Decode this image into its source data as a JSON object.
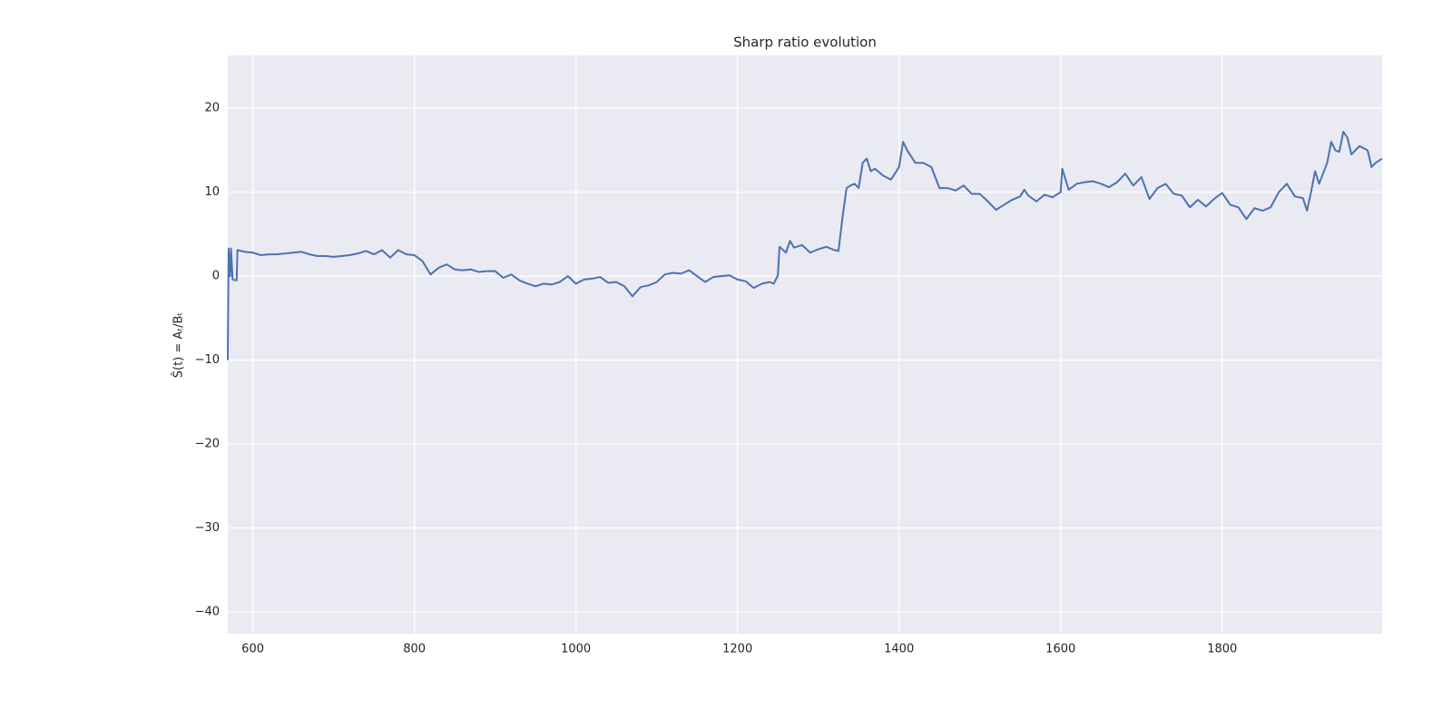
{
  "chart_data": {
    "type": "line",
    "title": "Sharp ratio evolution",
    "y_label": "Ŝ(t) = Aₜ/Bₜ",
    "xlim": [
      569,
      1998
    ],
    "ylim": [
      -42.6,
      26.3
    ],
    "xticks": [
      600,
      800,
      1000,
      1200,
      1400,
      1600,
      1800
    ],
    "yticks": [
      {
        "value": -40,
        "label": "−40"
      },
      {
        "value": -30,
        "label": "−30"
      },
      {
        "value": -20,
        "label": "−20"
      },
      {
        "value": -10,
        "label": "−10"
      },
      0,
      10,
      20
    ],
    "grid": true,
    "background": "#eaeaf2",
    "series": [
      {
        "color": "#4c72b0",
        "x": [
          569,
          570,
          572,
          573,
          575,
          580,
          581,
          590,
          600,
          610,
          620,
          630,
          640,
          650,
          660,
          670,
          680,
          690,
          700,
          710,
          720,
          730,
          740,
          750,
          760,
          770,
          780,
          790,
          800,
          810,
          820,
          830,
          840,
          850,
          860,
          870,
          880,
          890,
          900,
          910,
          920,
          930,
          940,
          950,
          960,
          970,
          980,
          990,
          1000,
          1010,
          1020,
          1030,
          1040,
          1050,
          1060,
          1070,
          1080,
          1090,
          1100,
          1110,
          1120,
          1130,
          1140,
          1150,
          1160,
          1170,
          1180,
          1190,
          1200,
          1210,
          1220,
          1230,
          1240,
          1245,
          1250,
          1252,
          1260,
          1265,
          1270,
          1280,
          1290,
          1300,
          1310,
          1320,
          1325,
          1330,
          1335,
          1340,
          1345,
          1350,
          1355,
          1360,
          1365,
          1370,
          1380,
          1390,
          1400,
          1405,
          1410,
          1420,
          1430,
          1440,
          1450,
          1460,
          1470,
          1480,
          1490,
          1500,
          1510,
          1520,
          1530,
          1540,
          1550,
          1555,
          1560,
          1570,
          1580,
          1590,
          1600,
          1602,
          1610,
          1620,
          1630,
          1640,
          1650,
          1660,
          1670,
          1680,
          1690,
          1700,
          1710,
          1720,
          1730,
          1740,
          1750,
          1760,
          1770,
          1780,
          1790,
          1800,
          1810,
          1820,
          1830,
          1840,
          1850,
          1860,
          1870,
          1880,
          1890,
          1900,
          1905,
          1910,
          1915,
          1920,
          1930,
          1935,
          1940,
          1945,
          1950,
          1955,
          1960,
          1970,
          1980,
          1985,
          1990,
          1998
        ],
        "values": [
          -10,
          3.3,
          0,
          3.3,
          -0.4,
          -0.5,
          3.1,
          2.9,
          2.8,
          2.5,
          2.6,
          2.6,
          2.7,
          2.8,
          2.9,
          2.6,
          2.4,
          2.4,
          2.3,
          2.4,
          2.5,
          2.7,
          3.0,
          2.6,
          3.1,
          2.2,
          3.1,
          2.6,
          2.5,
          1.8,
          0.2,
          1.0,
          1.4,
          0.8,
          0.7,
          0.8,
          0.5,
          0.6,
          0.6,
          -0.2,
          0.2,
          -0.5,
          -0.9,
          -1.2,
          -0.9,
          -1.0,
          -0.7,
          0.0,
          -0.9,
          -0.4,
          -0.3,
          -0.1,
          -0.8,
          -0.7,
          -1.2,
          -2.4,
          -1.3,
          -1.1,
          -0.7,
          0.2,
          0.4,
          0.3,
          0.7,
          0.0,
          -0.7,
          -0.1,
          0.0,
          0.1,
          -0.4,
          -0.6,
          -1.4,
          -0.9,
          -0.7,
          -0.9,
          0.1,
          3.5,
          2.8,
          4.2,
          3.4,
          3.7,
          2.8,
          3.2,
          3.5,
          3.1,
          3.0,
          7.0,
          10.5,
          10.8,
          11.0,
          10.5,
          13.5,
          14.0,
          12.5,
          12.8,
          12.0,
          11.5,
          13.0,
          16.0,
          15.0,
          13.5,
          13.5,
          13.0,
          10.5,
          10.5,
          10.2,
          10.8,
          9.8,
          9.8,
          8.9,
          7.9,
          8.5,
          9.1,
          9.5,
          10.3,
          9.6,
          8.9,
          9.7,
          9.4,
          10.0,
          12.8,
          10.3,
          11.0,
          11.2,
          11.3,
          11.0,
          10.6,
          11.2,
          12.2,
          10.8,
          11.8,
          9.2,
          10.5,
          11.0,
          9.8,
          9.6,
          8.2,
          9.1,
          8.3,
          9.2,
          9.9,
          8.5,
          8.2,
          6.8,
          8.1,
          7.8,
          8.2,
          10.0,
          11.0,
          9.5,
          9.3,
          7.8,
          10.0,
          12.5,
          11.0,
          13.5,
          16.0,
          15.0,
          14.8,
          17.2,
          16.5,
          14.5,
          15.5,
          15.0,
          13.0,
          13.5,
          14.0
        ]
      }
    ]
  }
}
